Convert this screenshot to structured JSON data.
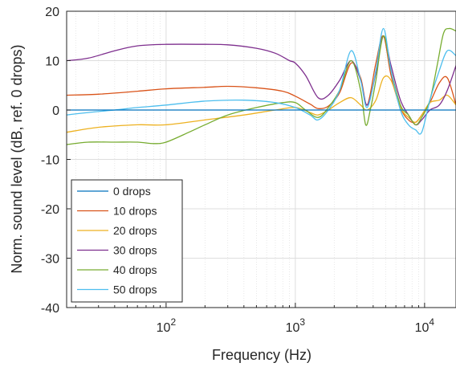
{
  "chart_data": {
    "type": "line",
    "title": "",
    "xlabel": "Frequency (Hz)",
    "ylabel": "Norm. sound level (dB, ref. 0 drops)",
    "xscale": "log",
    "xlim": [
      17,
      17500
    ],
    "ylim": [
      -40,
      20
    ],
    "yticks": [
      "20",
      "10",
      "0",
      "-10",
      "-20",
      "-30",
      "-40"
    ],
    "xticks": [
      {
        "value": 100,
        "base": "10",
        "exp": "2"
      },
      {
        "value": 1000,
        "base": "10",
        "exp": "3"
      },
      {
        "value": 10000,
        "base": "10",
        "exp": "4"
      }
    ],
    "grid": true,
    "legend_position": "bottom-left",
    "series": [
      {
        "name": "0 drops",
        "color": "#0072BD",
        "x": [
          17,
          100,
          1000,
          10000,
          17500
        ],
        "y": [
          0,
          0,
          0,
          0,
          0
        ]
      },
      {
        "name": "10 drops",
        "color": "#D95319",
        "x": [
          17,
          30,
          60,
          100,
          200,
          300,
          500,
          800,
          1000,
          1300,
          1500,
          1800,
          2200,
          2700,
          3200,
          3600,
          4200,
          4800,
          5500,
          6500,
          7500,
          8500,
          9500,
          11000,
          13000,
          15000,
          17500
        ],
        "y": [
          3.0,
          3.2,
          3.8,
          4.3,
          4.6,
          4.8,
          4.5,
          3.8,
          2.8,
          1.2,
          0.3,
          0.8,
          3.5,
          9.5,
          6.5,
          1.0,
          9.5,
          15.0,
          7.0,
          0.5,
          -2.0,
          -2.5,
          -1.0,
          1.5,
          5.5,
          6.5,
          1.0
        ]
      },
      {
        "name": "20 drops",
        "color": "#EDB120",
        "x": [
          17,
          30,
          60,
          100,
          200,
          400,
          700,
          1000,
          1300,
          1500,
          1800,
          2200,
          2700,
          3200,
          3600,
          4200,
          4800,
          5500,
          6500,
          7500,
          8500,
          9500,
          11000,
          13000,
          15000,
          17500
        ],
        "y": [
          -4.5,
          -3.5,
          -3.0,
          -3.0,
          -2.0,
          -1.0,
          0.0,
          0.5,
          -0.5,
          -1.0,
          0.0,
          1.5,
          2.5,
          1.0,
          0.0,
          2.0,
          6.5,
          6.0,
          0.5,
          -1.5,
          -2.5,
          -1.0,
          1.5,
          2.0,
          3.0,
          1.0
        ]
      },
      {
        "name": "30 drops",
        "color": "#7E2F8E",
        "x": [
          17,
          25,
          40,
          60,
          100,
          200,
          300,
          500,
          700,
          900,
          1000,
          1200,
          1500,
          1800,
          2200,
          2700,
          3200,
          3600,
          4200,
          4800,
          5500,
          6500,
          7500,
          8500,
          9500,
          11000,
          13000,
          15000,
          17500
        ],
        "y": [
          10.0,
          10.5,
          12.0,
          13.0,
          13.3,
          13.3,
          13.2,
          12.5,
          11.5,
          10.0,
          9.5,
          7.0,
          2.5,
          3.0,
          6.0,
          10.0,
          6.0,
          1.0,
          7.5,
          15.0,
          9.0,
          2.0,
          -1.0,
          -3.0,
          -2.0,
          0.0,
          1.0,
          4.0,
          9.0
        ]
      },
      {
        "name": "40 drops",
        "color": "#77AC30",
        "x": [
          17,
          25,
          40,
          60,
          80,
          100,
          150,
          200,
          300,
          500,
          800,
          1000,
          1200,
          1500,
          1800,
          2200,
          2700,
          3200,
          3500,
          3800,
          4200,
          4800,
          5500,
          6500,
          7500,
          8500,
          9500,
          11000,
          12500,
          14000,
          15500,
          17500
        ],
        "y": [
          -7.0,
          -6.5,
          -6.5,
          -6.5,
          -6.8,
          -6.5,
          -4.5,
          -3.0,
          -1.0,
          0.5,
          1.5,
          1.5,
          0.0,
          -1.5,
          0.5,
          4.0,
          10.0,
          4.0,
          -3.0,
          0.0,
          6.0,
          15.0,
          8.0,
          1.0,
          -1.0,
          -3.0,
          -1.5,
          2.0,
          9.0,
          15.5,
          16.5,
          16.0
        ]
      },
      {
        "name": "50 drops",
        "color": "#4DBEEE",
        "x": [
          17,
          25,
          40,
          60,
          100,
          200,
          400,
          700,
          1000,
          1300,
          1500,
          1800,
          2200,
          2700,
          3200,
          3600,
          4200,
          4800,
          5500,
          6500,
          7500,
          8500,
          9500,
          11000,
          13000,
          15000,
          17500
        ],
        "y": [
          -1.0,
          -0.5,
          0.0,
          0.5,
          1.0,
          1.8,
          2.0,
          1.5,
          0.5,
          -1.0,
          -2.0,
          0.0,
          4.0,
          12.0,
          6.0,
          0.5,
          8.0,
          16.5,
          8.0,
          0.0,
          -3.0,
          -4.0,
          -4.5,
          2.0,
          8.0,
          12.0,
          11.0
        ]
      }
    ]
  }
}
